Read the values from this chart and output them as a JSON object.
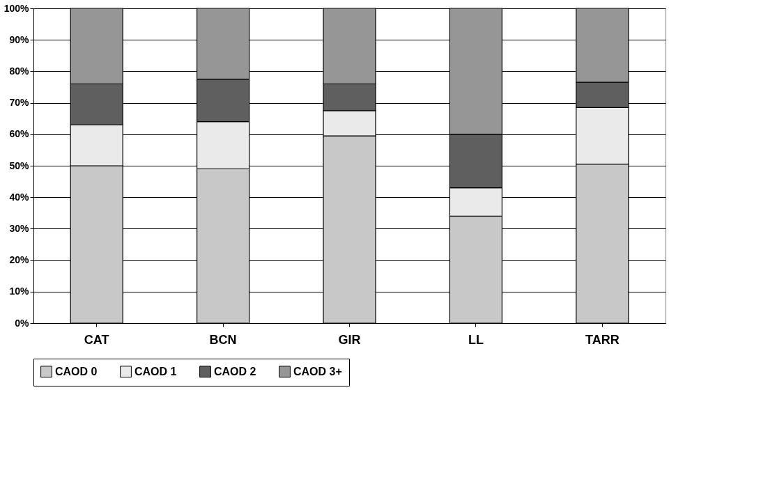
{
  "chart_data": {
    "type": "bar",
    "stacked": true,
    "categories": [
      "CAT",
      "BCN",
      "GIR",
      "LL",
      "TARR"
    ],
    "series": [
      {
        "name": "CAOD 0",
        "color": "#c8c8c8",
        "values": [
          50,
          49,
          59.5,
          34,
          50.5
        ]
      },
      {
        "name": "CAOD 1",
        "color": "#eaeaea",
        "values": [
          13,
          15,
          8,
          9,
          18
        ]
      },
      {
        "name": "CAOD 2",
        "color": "#5f5f5f",
        "values": [
          13,
          13.5,
          8.5,
          17,
          8
        ]
      },
      {
        "name": "CAOD 3+",
        "color": "#969696",
        "values": [
          24,
          22.5,
          24,
          40,
          23.5
        ]
      }
    ],
    "ylim": [
      0,
      100
    ],
    "yticks": [
      {
        "value": 0,
        "label": "0%"
      },
      {
        "value": 10,
        "label": "10%"
      },
      {
        "value": 20,
        "label": "20%"
      },
      {
        "value": 30,
        "label": "30%"
      },
      {
        "value": 40,
        "label": "40%"
      },
      {
        "value": 50,
        "label": "50%"
      },
      {
        "value": 60,
        "label": "60%"
      },
      {
        "value": 70,
        "label": "70%"
      },
      {
        "value": 80,
        "label": "80%"
      },
      {
        "value": 90,
        "label": "90%"
      },
      {
        "value": 100,
        "label": "100%"
      }
    ],
    "grid": "y",
    "legend": "bottom"
  }
}
